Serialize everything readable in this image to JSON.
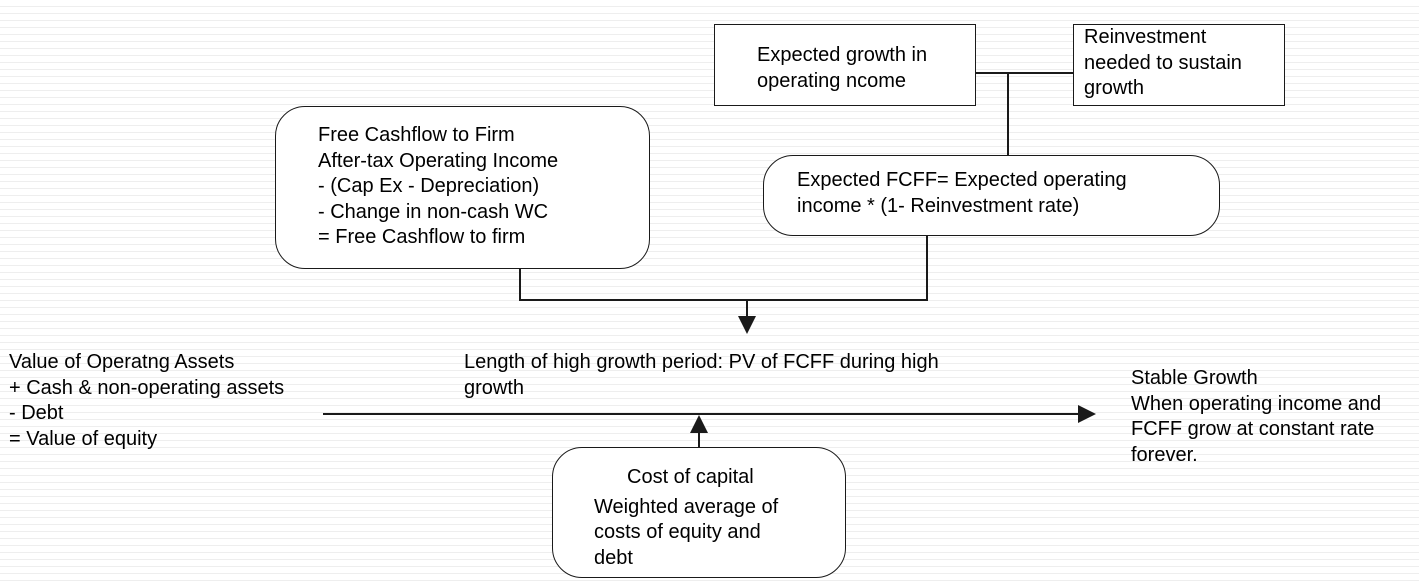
{
  "growth_box": {
    "lines": [
      "Expected growth in",
      "operating ncome"
    ]
  },
  "reinvestment_box": {
    "lines": [
      "Reinvestment",
      "needed to sustain",
      "growth"
    ]
  },
  "fcff_definition_box": {
    "lines": [
      "Free Cashflow to Firm",
      "After-tax Operating Income",
      "- (Cap Ex - Depreciation)",
      "- Change in non-cash WC",
      "= Free Cashflow to firm"
    ]
  },
  "expected_fcff_box": {
    "lines": [
      "Expected FCFF= Expected operating",
      "income * (1- Reinvestment rate)"
    ]
  },
  "cost_of_capital_box": {
    "title": "Cost of capital",
    "lines": [
      "Weighted average of",
      "costs of equity and",
      "debt"
    ]
  },
  "equity_value_text": {
    "lines": [
      "Value of Operatng Assets",
      "+ Cash & non-operating assets",
      "- Debt",
      "= Value of equity"
    ]
  },
  "high_growth_text": {
    "lines": [
      "Length of high growth period: PV of FCFF during high",
      "growth"
    ]
  },
  "stable_growth_text": {
    "lines": [
      "Stable Growth",
      "When operating income and",
      "FCFF grow at constant rate",
      "forever."
    ]
  }
}
